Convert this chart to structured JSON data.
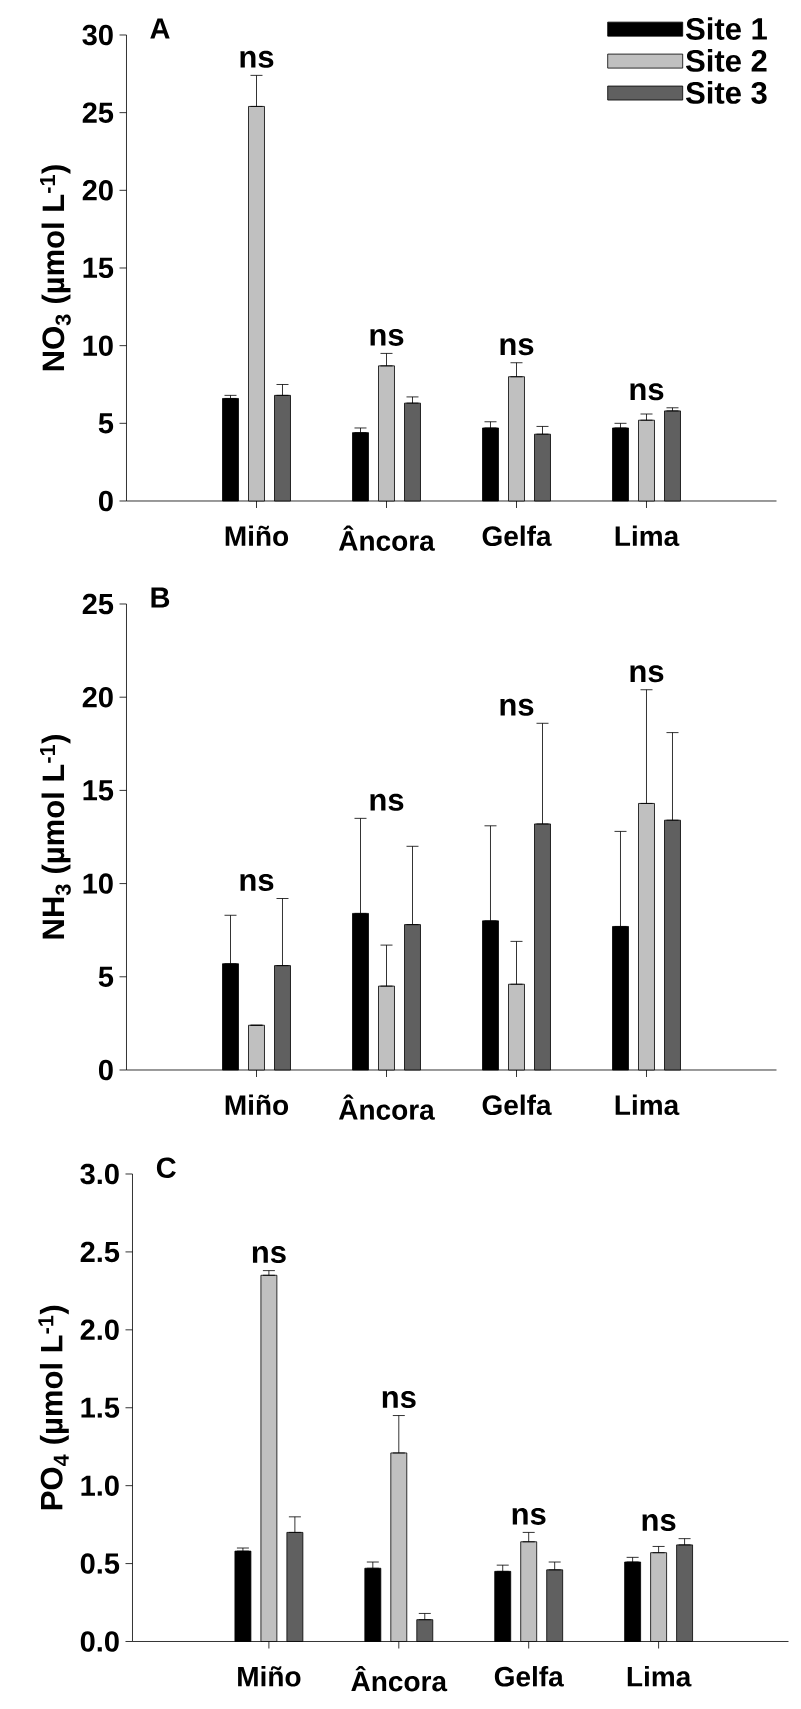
{
  "chart_data": [
    {
      "type": "bar",
      "title": "A",
      "ylabel": "NO$_{3}$ (µmol L$^{-1}$)",
      "categories": [
        "Miño",
        "Âncora",
        "Gelfa",
        "Lima"
      ],
      "ylim": [
        0,
        30
      ],
      "yticks": [
        0,
        5,
        10,
        15,
        20,
        25,
        30
      ],
      "legend": "top right",
      "series": [
        {
          "name": "Site 1",
          "color": "#000000",
          "values": [
            6.6,
            4.4,
            4.7,
            4.7
          ],
          "errors": [
            [
              6.6,
              6.8
            ],
            [
              4.4,
              4.7
            ],
            [
              4.7,
              5.1
            ],
            [
              4.7,
              5.0
            ]
          ]
        },
        {
          "name": "Site 2",
          "color": "#c0c0c0",
          "values": [
            25.4,
            8.7,
            8.0,
            5.2
          ],
          "errors": [
            [
              25.4,
              27.4
            ],
            [
              8.7,
              9.5
            ],
            [
              8.0,
              8.9
            ],
            [
              5.2,
              5.6
            ]
          ]
        },
        {
          "name": "Site 3",
          "color": "#606060",
          "values": [
            6.8,
            6.3,
            4.3,
            5.8
          ],
          "errors": [
            [
              6.8,
              7.5
            ],
            [
              6.3,
              6.7
            ],
            [
              4.3,
              4.8
            ],
            [
              5.8,
              6.0
            ]
          ]
        }
      ],
      "annotations": [
        "ns",
        "ns",
        "ns",
        "ns"
      ]
    },
    {
      "type": "bar",
      "title": "B",
      "ylabel": "NH$_{3}$ (µmol L$^{-1}$)",
      "categories": [
        "Miño",
        "Âncora",
        "Gelfa",
        "Lima"
      ],
      "ylim": [
        0,
        25
      ],
      "yticks": [
        0,
        5,
        10,
        15,
        20,
        25
      ],
      "series": [
        {
          "color": "#000000",
          "values": [
            5.7,
            8.4,
            8.0,
            7.7
          ],
          "errors": [
            [
              5.7,
              8.3
            ],
            [
              8.4,
              13.5
            ],
            [
              8.0,
              13.1
            ],
            [
              7.7,
              12.8
            ]
          ]
        },
        {
          "color": "#c0c0c0",
          "values": [
            2.4,
            4.5,
            4.6,
            14.3
          ],
          "errors": [
            null,
            [
              4.5,
              6.7
            ],
            [
              4.6,
              6.9
            ],
            [
              14.3,
              20.4
            ]
          ]
        },
        {
          "color": "#606060",
          "values": [
            5.6,
            7.8,
            13.2,
            13.4
          ],
          "errors": [
            [
              5.6,
              9.2
            ],
            [
              7.8,
              12.0
            ],
            [
              13.2,
              18.6
            ],
            [
              13.4,
              18.1
            ]
          ]
        }
      ],
      "annotations": [
        "ns",
        "ns",
        "ns",
        "ns"
      ]
    },
    {
      "type": "bar",
      "title": "C",
      "ylabel": "PO$_{4}$ (µmol L$^{-1}$)",
      "categories": [
        "Miño",
        "Âncora",
        "Gelfa",
        "Lima"
      ],
      "ylim": [
        0,
        3.0
      ],
      "yticks": [
        {
          "value": 0,
          "label": "0.0"
        },
        {
          "value": 0.5,
          "label": "0.5"
        },
        {
          "value": 1,
          "label": "1.0"
        },
        {
          "value": 1.5,
          "label": "1.5"
        },
        {
          "value": 2,
          "label": "2.0"
        },
        {
          "value": 2.5,
          "label": "2.5"
        },
        {
          "value": 3,
          "label": "3.0"
        }
      ],
      "series": [
        {
          "color": "#000000",
          "values": [
            0.58,
            0.47,
            0.45,
            0.51
          ],
          "errors": [
            [
              0.58,
              0.6
            ],
            [
              0.47,
              0.51
            ],
            [
              0.45,
              0.49
            ],
            [
              0.51,
              0.54
            ]
          ]
        },
        {
          "color": "#c0c0c0",
          "values": [
            2.35,
            1.21,
            0.64,
            0.57
          ],
          "errors": [
            [
              2.35,
              2.38
            ],
            [
              1.21,
              1.45
            ],
            [
              0.64,
              0.7
            ],
            [
              0.57,
              0.61
            ]
          ]
        },
        {
          "color": "#606060",
          "values": [
            0.7,
            0.14,
            0.46,
            0.62
          ],
          "errors": [
            [
              0.7,
              0.8
            ],
            [
              0.14,
              0.18
            ],
            [
              0.46,
              0.51
            ],
            [
              0.62,
              0.66
            ]
          ]
        }
      ],
      "annotations": [
        "ns",
        "ns",
        "ns",
        "ns"
      ]
    }
  ]
}
